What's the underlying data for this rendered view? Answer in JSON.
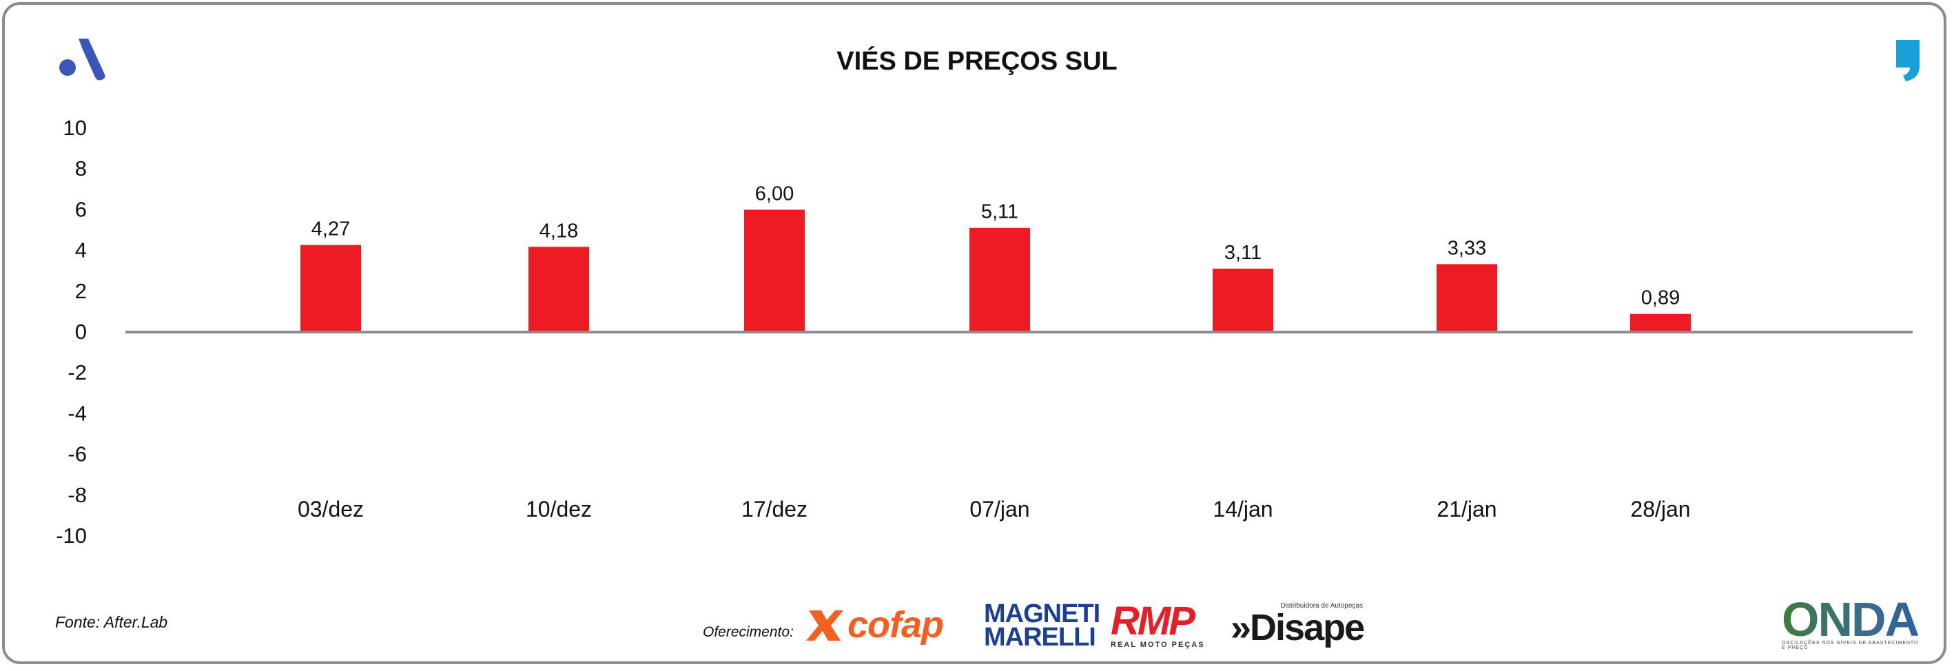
{
  "header": {
    "title": "VIÉS DE PREÇOS SUL"
  },
  "footer": {
    "source": "Fonte: After.Lab",
    "sponsor_label": "Oferecimento:",
    "sponsors": {
      "cofap": "cofap",
      "magneti_line1": "MAGNETI",
      "magneti_line2": "MARELLI",
      "rmp": "RMP",
      "rmp_sub": "REAL MOTO PEÇAS",
      "disape_small": "Distribuidora de Autopeças",
      "disape": "»Disape",
      "onda": "ONDA",
      "onda_sub": "OSCILAÇÕES NOS NÍVEIS DE ABASTECIMENTO E PREÇO"
    }
  },
  "colors": {
    "bar": "#ed1c24",
    "axis": "#8c8c8c",
    "brand_blue": "#3d55b8",
    "quote_blue": "#1aa0d8"
  },
  "icons": {
    "left_logo": "stylized-a-logo-icon",
    "right_logo": "quote-mark-icon"
  },
  "chart_data": {
    "type": "bar",
    "title": "VIÉS DE PREÇOS SUL",
    "categories": [
      "03/dez",
      "10/dez",
      "17/dez",
      "07/jan",
      "14/jan",
      "21/jan",
      "28/jan"
    ],
    "values": [
      4.27,
      4.18,
      6.0,
      5.11,
      3.11,
      3.33,
      0.89
    ],
    "value_labels": [
      "4,27",
      "4,18",
      "6,00",
      "5,11",
      "3,11",
      "3,33",
      "0,89"
    ],
    "y_ticks": [
      "10",
      "8",
      "6",
      "4",
      "2",
      "0",
      "-2",
      "-4",
      "-6",
      "-8",
      "-10"
    ],
    "ylim": [
      -10,
      10
    ],
    "xlabel": "",
    "ylabel": "",
    "grid": false,
    "legend": "none"
  }
}
